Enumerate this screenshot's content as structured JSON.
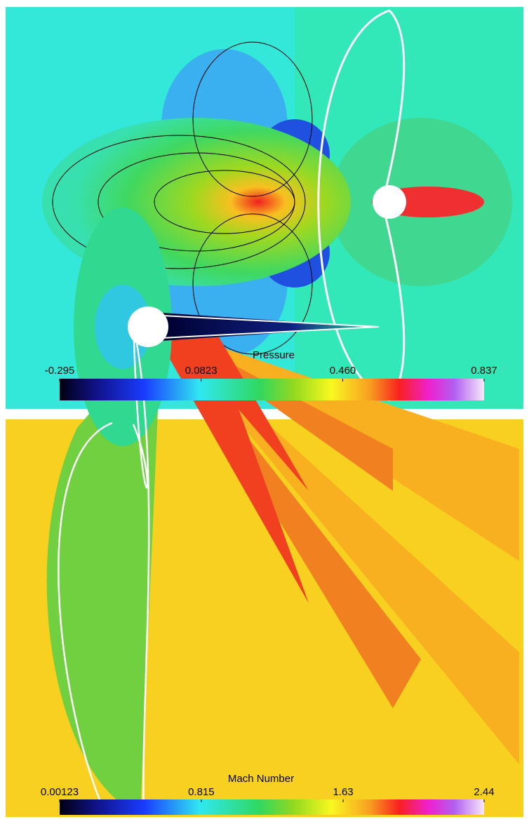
{
  "chart_data": [
    {
      "type": "contour",
      "colorbar_title": "Pressure",
      "clim": [
        -0.295,
        0.837
      ],
      "cticks": [
        -0.295,
        0.0823,
        {
          "value": 0.46,
          "label": "0.460"
        },
        0.837
      ]
    },
    {
      "type": "contour",
      "colorbar_title": "Mach Number",
      "clim": [
        0.00123,
        2.44
      ],
      "cticks": [
        0.00123,
        0.815,
        1.63,
        2.44
      ]
    }
  ]
}
